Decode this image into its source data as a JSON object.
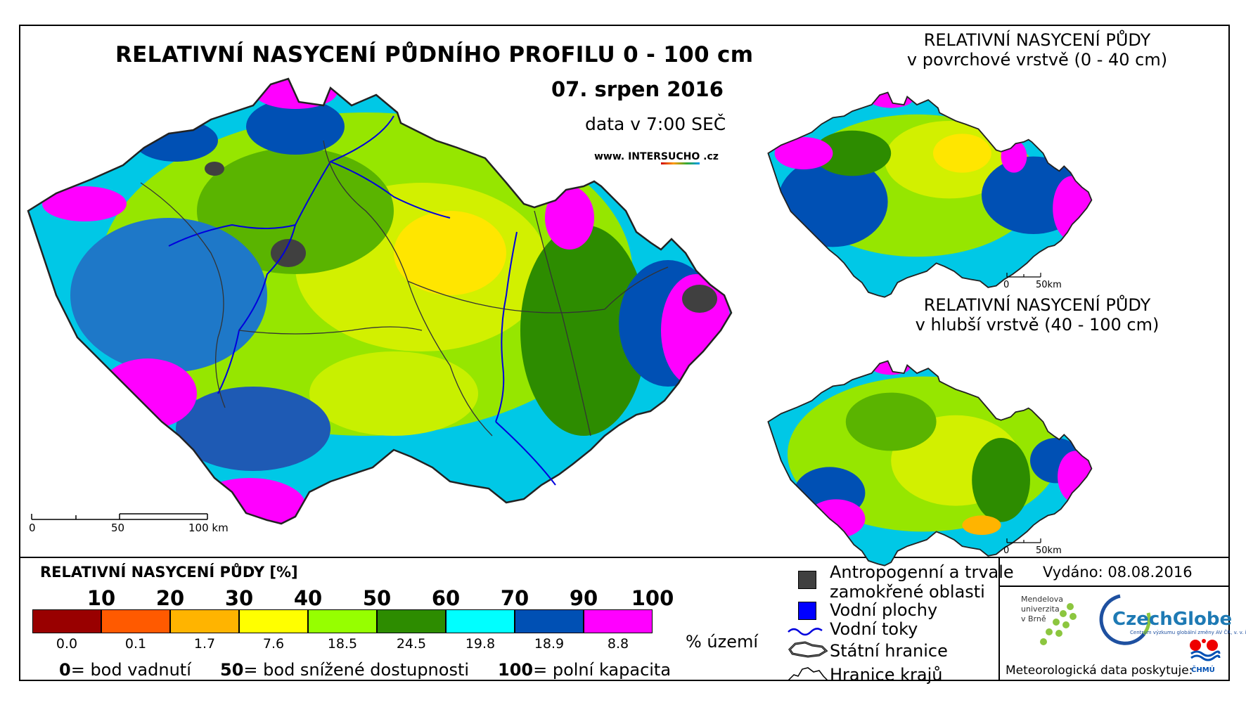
{
  "main_map": {
    "title": "RELATIVNÍ NASYCENÍ PŮDNÍHO PROFILU 0 - 100 cm",
    "date": "07. srpen 2016",
    "time": "data v 7:00 SEČ",
    "website_prefix": "www. INTER",
    "website_highlight": "SUCHO",
    "website_suffix": " .cz",
    "scale_labels": [
      "0",
      "50",
      "100 km"
    ]
  },
  "inset_top": {
    "title_line1": "RELATIVNÍ NASYCENÍ PŮDY",
    "title_line2": "v povrchové vrstvě (0 - 40 cm)",
    "scale_labels": [
      "0",
      "50km"
    ]
  },
  "inset_bottom": {
    "title_line1": "RELATIVNÍ NASYCENÍ PŮDY",
    "title_line2": "v hlubší vrstvě (40 - 100 cm)",
    "scale_labels": [
      "0",
      "50km"
    ]
  },
  "legend": {
    "title": "RELATIVNÍ NASYCENÍ PŮDY [%]",
    "classes": [
      {
        "color": "#990000",
        "percent": "0.0"
      },
      {
        "color": "#ff5a00",
        "percent": "0.1"
      },
      {
        "color": "#ffb400",
        "percent": "1.7"
      },
      {
        "color": "#ffff00",
        "percent": "7.6"
      },
      {
        "color": "#96ff00",
        "percent": "18.5"
      },
      {
        "color": "#2d8c00",
        "percent": "24.5"
      },
      {
        "color": "#00ffff",
        "percent": "19.8"
      },
      {
        "color": "#0050b4",
        "percent": "18.9"
      },
      {
        "color": "#ff00ff",
        "percent": "8.8"
      }
    ],
    "ticks": [
      "10",
      "20",
      "30",
      "40",
      "50",
      "60",
      "70",
      "90",
      "100"
    ],
    "percent_unit": "% území",
    "notes": [
      {
        "value": "0",
        "text": "= bod vadnutí"
      },
      {
        "value": "50",
        "text": "= bod snížené dostupnosti"
      },
      {
        "value": "100",
        "text": "= polní kapacita"
      }
    ]
  },
  "symbols": {
    "anthropogenic_line1": "Antropogenní a trvale",
    "anthropogenic_line2": "zamokřené oblasti",
    "water_bodies": "Vodní plochy",
    "rivers": "Vodní toky",
    "state_border": "Státní hranice",
    "region_border": "Hranice krajů",
    "colors": {
      "anthropogenic": "#404040",
      "water_bodies": "#0000ff",
      "rivers": "#0000dd"
    }
  },
  "credits": {
    "issued": "Vydáno: 08.08.2016",
    "mendel_line1": "Mendelova",
    "mendel_line2": "univerzita",
    "mendel_line3": "v Brně",
    "czechglobe": "CzechGlobe",
    "czechglobe_sub": "Centrum výzkumu globální změny AV ČR, v. v. i.",
    "meteo": "Meteorologická data poskytuje:",
    "chmu": "ČHMÚ"
  }
}
